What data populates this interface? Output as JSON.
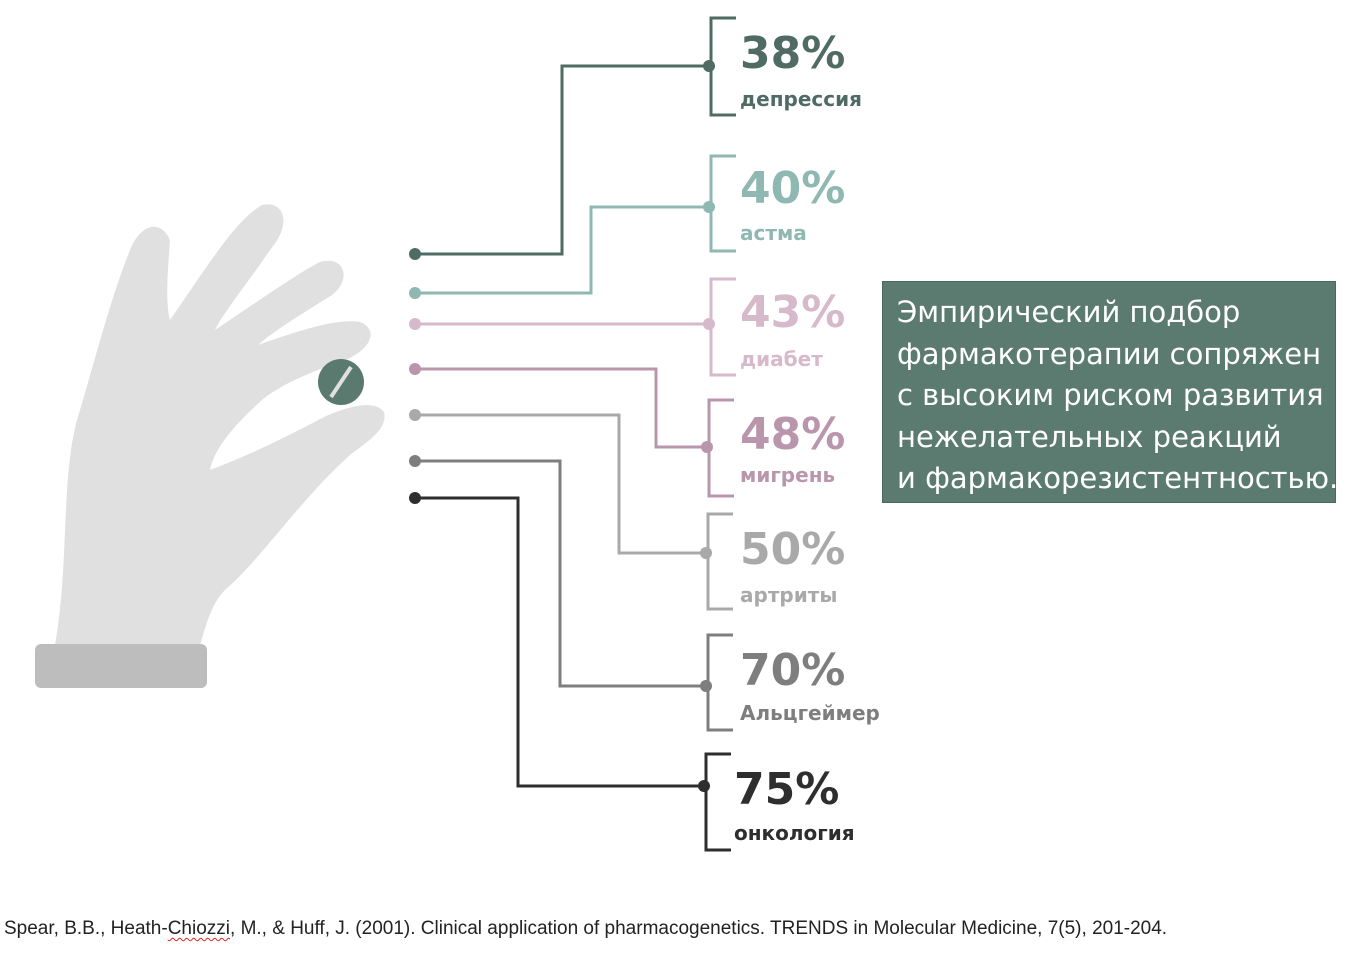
{
  "items": [
    {
      "percent": "38%",
      "label": "депрессия",
      "color": "#4f6b63"
    },
    {
      "percent": "40%",
      "label": "астма",
      "color": "#8fb8b2"
    },
    {
      "percent": "43%",
      "label": "диабет",
      "color": "#d6b9ca"
    },
    {
      "percent": "48%",
      "label": "мигрень",
      "color": "#b996ab"
    },
    {
      "percent": "50%",
      "label": "артриты",
      "color": "#a9a9a9"
    },
    {
      "percent": "70%",
      "label": "Альцгеймер",
      "color": "#7e7e7e"
    },
    {
      "percent": "75%",
      "label": "онкология",
      "color": "#2e2e2e"
    }
  ],
  "info_box": {
    "lines": [
      "Эмпирический подбор",
      "фармакотерапии сопряжен",
      "с высоким риском развития",
      "нежелательных реакций",
      "и фармакорезистентностью."
    ],
    "background": "#5b7a70"
  },
  "citation": {
    "part1": "Spear, B.B., Heath-",
    "part2": "Chiozzi",
    "part3": ", M., & Huff, J. (2001). Clinical application of pharmacogenetics. TRENDS in Molecular Medicine, 7(5), 201-204."
  },
  "icons": {
    "hand": "hand-icon",
    "pill": "pill-icon"
  }
}
